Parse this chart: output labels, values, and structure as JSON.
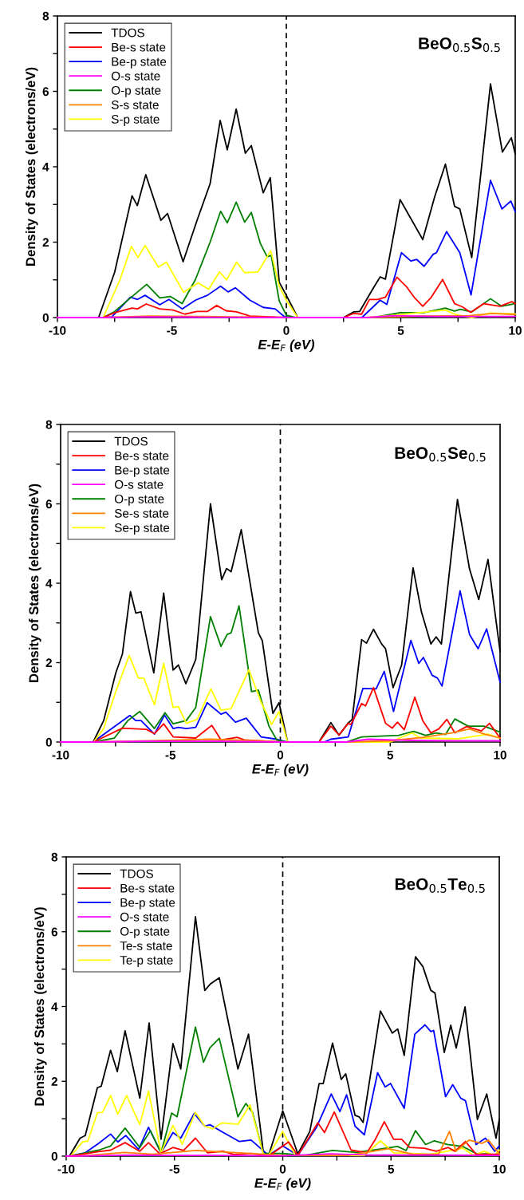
{
  "chart_data": [
    {
      "type": "line",
      "title": "BeO$_{0.5}$S$_{0.5}$",
      "xlabel": "E-E$_{F}$ (eV)",
      "ylabel": "Density of States (electrons/eV)",
      "xlim": [
        -10,
        10
      ],
      "ylim": [
        0,
        8
      ],
      "xticks": [
        -10,
        {
          "value": -7.5,
          "label": null
        },
        -5,
        {
          "value": -2.5,
          "label": null
        },
        0,
        {
          "value": 2.5,
          "label": null
        },
        5,
        {
          "value": 7.5,
          "label": null
        },
        10
      ],
      "yticks": [
        0,
        {
          "value": 1,
          "label": null
        },
        2,
        {
          "value": 3,
          "label": null
        },
        4,
        {
          "value": 5,
          "label": null
        },
        6,
        {
          "value": 7,
          "label": null
        },
        8
      ],
      "grid": false,
      "legend": "top left",
      "marker": "none",
      "line_style": "solid",
      "ref_lines": [
        {
          "axis": "x",
          "value": 0,
          "color": "#000000",
          "line_style": "dashed"
        }
      ],
      "series": [
        {
          "name": "TDOS",
          "color": "#000000",
          "x": [
            -10,
            -8.2,
            -7.5,
            -6.74,
            -6.51,
            -6.14,
            -5.48,
            -5.19,
            -4.51,
            -3.91,
            -3.33,
            -2.89,
            -2.58,
            -2.19,
            -1.79,
            -1.53,
            -1.01,
            -0.7,
            -0.31,
            0,
            0.5,
            2.5,
            2.94,
            3.2,
            3.75,
            4.1,
            4.33,
            4.97,
            5.96,
            6.48,
            6.95,
            7.35,
            7.58,
            8.1,
            8.92,
            9.44,
            9.83,
            10
          ],
          "values": [
            0,
            0,
            1.2,
            3.23,
            2.97,
            3.79,
            2.58,
            2.76,
            1.48,
            2.56,
            3.55,
            5.23,
            4.45,
            5.53,
            4.36,
            4.56,
            3.31,
            3.71,
            0.94,
            0.59,
            0,
            0,
            0.15,
            0.16,
            0.73,
            1.08,
            1.02,
            3.13,
            2.07,
            3.2,
            4.07,
            2.95,
            2.88,
            1.59,
            6.2,
            4.39,
            4.77,
            4.34
          ]
        },
        {
          "name": "Be-s state",
          "color": "#ff0000",
          "x": [
            -10,
            -8,
            -7.5,
            -6.74,
            -6.5,
            -6.12,
            -5.53,
            -4.95,
            -4.43,
            -3.91,
            -3.45,
            -3.04,
            -2.63,
            -2.17,
            -1.59,
            0,
            2.5,
            2.94,
            3.29,
            3.63,
            3.99,
            4.33,
            4.83,
            5.26,
            5.61,
            5.96,
            6.31,
            6.83,
            7.35,
            7.7,
            8.05,
            8.63,
            9.33,
            9.85,
            10
          ],
          "values": [
            0,
            0,
            0.13,
            0.25,
            0.23,
            0.36,
            0.23,
            0.2,
            0.09,
            0.16,
            0.16,
            0.32,
            0.18,
            0.15,
            0.04,
            0,
            0,
            0.11,
            0.09,
            0.48,
            0.48,
            0.54,
            1.07,
            0.81,
            0.52,
            0.3,
            0.52,
            1.01,
            0.37,
            0.28,
            0.14,
            0.37,
            0.3,
            0.42,
            0.37
          ]
        },
        {
          "name": "Be-p state",
          "color": "#0000ff",
          "x": [
            -10,
            -8,
            -7.62,
            -6.81,
            -6.5,
            -6.17,
            -5.53,
            -5.13,
            -4.55,
            -3.97,
            -3.45,
            -2.87,
            -2.54,
            -2.23,
            -1.59,
            -1.01,
            -0.49,
            -0.08,
            0.3,
            3.3,
            4.1,
            4.39,
            5.03,
            5.44,
            5.7,
            6.02,
            6.42,
            6.56,
            7.0,
            7.58,
            8.07,
            8.92,
            9.42,
            9.81,
            10
          ],
          "values": [
            0,
            0,
            0.02,
            0.54,
            0.48,
            0.59,
            0.34,
            0.48,
            0.23,
            0.46,
            0.59,
            0.83,
            0.68,
            0.79,
            0.46,
            0.27,
            0.23,
            0.02,
            0,
            0,
            0.46,
            0.35,
            1.72,
            1.5,
            1.54,
            1.36,
            1.68,
            1.72,
            2.28,
            1.72,
            0.6,
            3.64,
            2.88,
            3.09,
            2.81
          ]
        },
        {
          "name": "O-s state",
          "color": "#ff00ff",
          "x": [
            -10,
            -8,
            -6,
            -4,
            0,
            3.5,
            4.7,
            6.5,
            8,
            10
          ],
          "values": [
            0,
            0,
            0.02,
            0.01,
            0,
            0,
            0.05,
            0.03,
            0.03,
            0.03
          ]
        },
        {
          "name": "O-p state",
          "color": "#008000",
          "x": [
            -10,
            -8,
            -7.5,
            -6.81,
            -6.1,
            -5.53,
            -5.07,
            -4.55,
            -3.97,
            -3.33,
            -2.87,
            -2.58,
            -2.19,
            -1.82,
            -1.53,
            -1.13,
            -0.84,
            -0.66,
            -0.31,
            0,
            0.4,
            3.8,
            4.97,
            6,
            6.95,
            7.35,
            7.6,
            8.1,
            8.92,
            9.4,
            10
          ],
          "values": [
            0,
            0,
            0.16,
            0.52,
            0.88,
            0.52,
            0.56,
            0.37,
            1.01,
            2.0,
            2.82,
            2.51,
            3.06,
            2.53,
            2.79,
            1.96,
            1.61,
            1.65,
            0.44,
            0.06,
            0,
            0,
            0.13,
            0.13,
            0.25,
            0.17,
            0.22,
            0.15,
            0.5,
            0.3,
            0.37
          ]
        },
        {
          "name": "S-s state",
          "color": "#ff8000",
          "x": [
            -10,
            -8,
            -6,
            -4,
            0,
            3.5,
            6,
            8,
            9,
            10
          ],
          "values": [
            0,
            0,
            0.04,
            0.03,
            0,
            0,
            0.04,
            0.05,
            0.11,
            0.08
          ]
        },
        {
          "name": "S-p state",
          "color": "#ffff00",
          "x": [
            -10,
            -8,
            -7.27,
            -6.77,
            -6.48,
            -6.17,
            -5.59,
            -5.24,
            -4.49,
            -3.85,
            -3.39,
            -2.92,
            -2.61,
            -2.17,
            -1.82,
            -1.24,
            -0.68,
            -0.31,
            0,
            0.5,
            3.5,
            4.5,
            6.95,
            7.4,
            8.1,
            8.9,
            10
          ],
          "values": [
            0,
            0,
            1.0,
            1.89,
            1.59,
            1.91,
            1.34,
            1.47,
            0.67,
            0.92,
            0.75,
            1.21,
            1.0,
            1.47,
            1.19,
            1.21,
            1.77,
            0.83,
            0.46,
            0,
            0,
            0.05,
            0.2,
            0.08,
            0,
            0.12,
            0.1
          ]
        }
      ]
    },
    {
      "type": "line",
      "title": "BeO$_{0.5}$Se$_{0.5}$",
      "xlabel": "E-E$_{F}$ (eV)",
      "ylabel": "Density of States (electrons/eV)",
      "xlim": [
        -10,
        10
      ],
      "ylim": [
        0,
        8
      ],
      "xticks": [
        -10,
        {
          "value": -7.5,
          "label": null
        },
        -5,
        {
          "value": -2.5,
          "label": null
        },
        0,
        {
          "value": 2.5,
          "label": null
        },
        5,
        {
          "value": 7.5,
          "label": null
        },
        10
      ],
      "yticks": [
        0,
        {
          "value": 1,
          "label": null
        },
        2,
        {
          "value": 3,
          "label": null
        },
        4,
        {
          "value": 5,
          "label": null
        },
        6,
        {
          "value": 7,
          "label": null
        },
        8
      ],
      "grid": false,
      "legend": "top left",
      "marker": "none",
      "line_style": "solid",
      "ref_lines": [
        {
          "axis": "x",
          "value": 0,
          "color": "#000000",
          "line_style": "dashed"
        }
      ],
      "series": [
        {
          "name": "TDOS",
          "color": "#000000",
          "x": [
            -10,
            -8.52,
            -8.04,
            -7.49,
            -7.19,
            -6.82,
            -6.58,
            -6.34,
            -5.76,
            -5.31,
            -4.88,
            -4.64,
            -4.3,
            -3.85,
            -3.18,
            -2.67,
            -2.45,
            -2.24,
            -1.78,
            -1.0,
            -0.82,
            -0.34,
            -0.06,
            0.33,
            1.76,
            2.3,
            2.67,
            3.09,
            3.27,
            3.7,
            3.92,
            4.24,
            4.61,
            4.79,
            5.13,
            5.52,
            6.04,
            6.42,
            6.85,
            7.09,
            7.33,
            8.06,
            8.61,
            9.03,
            9.45,
            10
          ],
          "values": [
            0,
            0,
            0.54,
            1.74,
            2.21,
            3.79,
            3.25,
            3.28,
            1.74,
            3.75,
            1.81,
            1.94,
            1.47,
            2.08,
            6.0,
            4.09,
            4.37,
            4.29,
            5.35,
            2.75,
            2.55,
            0.72,
            0.99,
            0,
            0,
            0.49,
            0.17,
            0.48,
            0.57,
            2.58,
            2.49,
            2.84,
            2.47,
            2.35,
            1.37,
            1.94,
            4.39,
            3.28,
            2.47,
            2.65,
            2.47,
            6.11,
            4.36,
            3.59,
            4.6,
            2.28
          ]
        },
        {
          "name": "Be-s state",
          "color": "#ff0000",
          "x": [
            -10,
            -8.5,
            -7.19,
            -6.1,
            -5.73,
            -5.31,
            -4.88,
            -3.85,
            -3.12,
            -2.7,
            -1.97,
            -1.61,
            0,
            1.76,
            2.3,
            2.67,
            3.09,
            3.21,
            3.7,
            3.88,
            4.24,
            4.79,
            5.09,
            5.33,
            5.64,
            6.12,
            6.48,
            6.85,
            7.21,
            7.58,
            7.94,
            8.48,
            9.15,
            9.52,
            10
          ],
          "values": [
            0,
            0,
            0.35,
            0.32,
            0.21,
            0.46,
            0.13,
            0.1,
            0.42,
            0.05,
            0.12,
            0.05,
            0,
            0,
            0.4,
            0.18,
            0.47,
            0.44,
            0.97,
            0.91,
            1.37,
            0.47,
            0.35,
            0.5,
            0.31,
            1.13,
            0.54,
            0.23,
            0.33,
            0.57,
            0.23,
            0.39,
            0.28,
            0.47,
            0.1
          ]
        },
        {
          "name": "Be-p state",
          "color": "#0000ff",
          "x": [
            -10,
            -8.52,
            -6.85,
            -6.58,
            -6.34,
            -5.73,
            -5.27,
            -4.88,
            -4.64,
            -4.28,
            -3.85,
            -3.33,
            -2.7,
            -2.48,
            -2.04,
            -1.55,
            -0.88,
            -0.16,
            0.3,
            2,
            2.3,
            3.09,
            3.76,
            4.36,
            4.73,
            5.15,
            5.94,
            6.3,
            6.51,
            6.91,
            7.15,
            7.36,
            8.18,
            8.61,
            9.0,
            9.39,
            10
          ],
          "values": [
            0,
            0,
            0.67,
            0.54,
            0.54,
            0.2,
            0.68,
            0.34,
            0.37,
            0.34,
            0.37,
            0.99,
            0.7,
            0.75,
            0.5,
            0.6,
            0.13,
            0.07,
            0,
            0,
            0.07,
            0.13,
            1.35,
            1.34,
            1.78,
            0.77,
            2.56,
            1.98,
            2.13,
            1.68,
            1.61,
            1.41,
            3.81,
            2.71,
            2.35,
            2.85,
            1.51
          ]
        },
        {
          "name": "O-s state",
          "color": "#ff00ff",
          "x": [
            -10,
            -8.5,
            -6,
            -3,
            0,
            3,
            4,
            6,
            8,
            10
          ],
          "values": [
            0,
            0,
            0.02,
            0.02,
            0,
            0,
            0.07,
            0.04,
            0.03,
            0.03
          ]
        },
        {
          "name": "O-p state",
          "color": "#008000",
          "x": [
            -10,
            -8.5,
            -7.55,
            -6.94,
            -6.4,
            -5.73,
            -5.25,
            -4.88,
            -4.28,
            -3.85,
            -3.18,
            -2.7,
            -2.42,
            -2.24,
            -1.88,
            -1.31,
            -1.0,
            -0.52,
            -0.16,
            0.3,
            3,
            3.7,
            5.39,
            6.06,
            6.61,
            7.09,
            7.52,
            7.94,
            8.55,
            9.27,
            10
          ],
          "values": [
            0,
            0,
            0.1,
            0.54,
            0.77,
            0.34,
            0.74,
            0.46,
            0.54,
            0.87,
            3.16,
            2.41,
            2.71,
            2.75,
            3.43,
            1.27,
            1.31,
            0.4,
            0.05,
            0,
            0,
            0.13,
            0.17,
            0.27,
            0.17,
            0.23,
            0.19,
            0.58,
            0.4,
            0.4,
            0.25
          ]
        },
        {
          "name": "Se-s state",
          "color": "#ff8000",
          "x": [
            -10,
            -8.5,
            -6,
            -3.2,
            -1,
            0,
            3,
            5,
            6.5,
            7.8,
            8.6,
            9.3,
            10
          ],
          "values": [
            0,
            0,
            0.03,
            0.07,
            0.03,
            0,
            0,
            0.03,
            0.12,
            0.23,
            0.33,
            0.2,
            0.1
          ]
        },
        {
          "name": "Se-p state",
          "color": "#ffff00",
          "x": [
            -10,
            -8.5,
            -8.04,
            -7.49,
            -6.88,
            -6.46,
            -6.22,
            -5.73,
            -5.31,
            -4.88,
            -4.64,
            -4.28,
            -3.79,
            -3.16,
            -2.7,
            -2.24,
            -1.43,
            -0.88,
            -0.4,
            -0.06,
            0.33,
            5,
            6.0,
            6.36,
            8.06,
            9.45,
            10
          ],
          "values": [
            0,
            0,
            0.34,
            1.27,
            2.18,
            1.61,
            1.61,
            0.94,
            1.98,
            0.87,
            0.89,
            0.47,
            0.57,
            1.34,
            0.8,
            0.84,
            1.82,
            1.01,
            0.44,
            0.77,
            0,
            0,
            0.23,
            0.1,
            0.08,
            0.2,
            0.1
          ]
        }
      ]
    },
    {
      "type": "line",
      "title": "BeO$_{0.5}$Te$_{0.5}$",
      "xlabel": "E-E$_{F}$ (eV)",
      "ylabel": "Density of States (electrons/eV)",
      "xlim": [
        -10,
        10
      ],
      "ylim": [
        0,
        8
      ],
      "xticks": [
        -10,
        {
          "value": -7.5,
          "label": null
        },
        -5,
        {
          "value": -2.5,
          "label": null
        },
        0,
        {
          "value": 2.5,
          "label": null
        },
        5,
        {
          "value": 7.5,
          "label": null
        },
        10
      ],
      "yticks": [
        0,
        {
          "value": 1,
          "label": null
        },
        2,
        {
          "value": 3,
          "label": null
        },
        4,
        {
          "value": 5,
          "label": null
        },
        6,
        {
          "value": 7,
          "label": null
        },
        8
      ],
      "grid": false,
      "legend": "top left",
      "marker": "none",
      "line_style": "solid",
      "ref_lines": [
        {
          "axis": "x",
          "value": 0,
          "color": "#000000",
          "line_style": "dashed"
        }
      ],
      "series": [
        {
          "name": "TDOS",
          "color": "#000000",
          "x": [
            -10,
            -9.85,
            -9.36,
            -9.12,
            -8.56,
            -8.38,
            -7.95,
            -7.64,
            -7.28,
            -6.6,
            -6.17,
            -5.62,
            -5.07,
            -4.71,
            -4.03,
            -3.6,
            -3.33,
            -2.93,
            -2.07,
            -1.58,
            -0.9,
            -0.65,
            0,
            0.7,
            1.25,
            1.68,
            1.87,
            2.3,
            2.7,
            2.91,
            3.34,
            3.53,
            3.71,
            4.51,
            5.06,
            5.31,
            5.61,
            6.13,
            6.47,
            6.84,
            7.03,
            7.46,
            7.76,
            8.01,
            8.42,
            8.99,
            9.42,
            9.85,
            10
          ],
          "values": [
            0,
            0,
            0.48,
            0.55,
            1.83,
            1.87,
            2.83,
            2.26,
            3.35,
            1.55,
            3.56,
            0.45,
            3.01,
            2.33,
            6.4,
            4.43,
            4.61,
            4.77,
            2.33,
            3.26,
            0.13,
            0.02,
            1.21,
            0.06,
            0.66,
            1.94,
            1.94,
            3.02,
            2.05,
            2.2,
            1.09,
            1.05,
            0.9,
            3.88,
            3.29,
            3.4,
            2.69,
            5.33,
            5.07,
            4.43,
            4.36,
            2.77,
            3.5,
            2.89,
            3.99,
            0.98,
            1.66,
            0.48,
            0.98
          ]
        },
        {
          "name": "Be-s state",
          "color": "#ff0000",
          "x": [
            -10,
            -9.8,
            -8.5,
            -7.95,
            -7.28,
            -6.6,
            -6.2,
            -5.68,
            -5.07,
            -4.58,
            -4.03,
            -3.48,
            -2.76,
            -2.25,
            -1.46,
            -0.65,
            0.27,
            0.7,
            1.31,
            1.62,
            1.93,
            2.38,
            3.16,
            3.89,
            4.26,
            4.69,
            5.12,
            5.49,
            5.86,
            6.54,
            7.09,
            7.64,
            7.95,
            8.44,
            8.93,
            10
          ],
          "values": [
            0,
            0,
            0.12,
            0.16,
            0.36,
            0.13,
            0.36,
            0.06,
            0.23,
            0.15,
            0.48,
            0.09,
            0.13,
            0.04,
            0.07,
            0,
            0.38,
            0.02,
            0.59,
            0.89,
            0.63,
            1.18,
            0.16,
            0.09,
            0.43,
            0.92,
            0.45,
            0.45,
            0.23,
            0.21,
            0.13,
            0.23,
            0.13,
            0.39,
            0.05,
            0.05
          ]
        },
        {
          "name": "Be-p state",
          "color": "#0000ff",
          "x": [
            -10,
            -9.85,
            -9.12,
            -8.5,
            -7.95,
            -7.62,
            -7.25,
            -6.66,
            -6.2,
            -5.62,
            -5.07,
            -4.71,
            -4.09,
            -3.6,
            -3.36,
            -2.74,
            -2.0,
            -1.46,
            -0.65,
            0,
            0.7,
            1.56,
            2.24,
            2.64,
            2.95,
            3.34,
            3.77,
            4.38,
            4.73,
            4.98,
            5.61,
            6.1,
            6.57,
            6.84,
            6.97,
            7.52,
            7.85,
            8.22,
            8.44,
            8.93,
            9.36,
            9.79,
            10
          ],
          "values": [
            0,
            0,
            0.09,
            0.34,
            0.59,
            0.38,
            0.55,
            0.18,
            0.77,
            0.09,
            0.63,
            0.48,
            1.14,
            0.8,
            0.84,
            0.63,
            0.39,
            0.43,
            0.02,
            0.27,
            0.02,
            0.77,
            1.66,
            1.19,
            1.64,
            0.8,
            0.57,
            2.23,
            1.85,
            1.94,
            1.28,
            3.26,
            3.51,
            3.33,
            3.36,
            1.59,
            1.91,
            1.55,
            1.48,
            0.31,
            0.48,
            0.13,
            0.27
          ]
        },
        {
          "name": "O-s state",
          "color": "#ff00ff",
          "x": [
            -10,
            -9,
            -7,
            -5,
            -3,
            0,
            2.2,
            4,
            7,
            10
          ],
          "values": [
            0,
            0.01,
            0.03,
            0.02,
            0.02,
            0.01,
            0.06,
            0.03,
            0.03,
            0.02
          ]
        },
        {
          "name": "O-p state",
          "color": "#008000",
          "x": [
            -10,
            -9.8,
            -8.5,
            -7.95,
            -7.28,
            -6.6,
            -6.11,
            -5.62,
            -5.13,
            -4.88,
            -4.03,
            -3.66,
            -3.36,
            -2.93,
            -2.07,
            -1.7,
            -1.39,
            -0.9,
            0,
            1,
            2.3,
            3.4,
            4.5,
            5.3,
            5.7,
            6.13,
            6.6,
            7.0,
            7.6,
            8.3,
            9.0,
            9.4,
            10
          ],
          "values": [
            0,
            0,
            0.16,
            0.27,
            0.75,
            0.23,
            0.68,
            0.09,
            1.15,
            1.05,
            3.45,
            2.51,
            2.9,
            3.15,
            1.05,
            1.41,
            1.16,
            0.07,
            0.07,
            0.02,
            0.15,
            0.1,
            0.19,
            0.26,
            0.15,
            0.68,
            0.31,
            0.41,
            0.31,
            0.26,
            0.05,
            0.06,
            0.02
          ]
        },
        {
          "name": "Te-s state",
          "color": "#ff8000",
          "x": [
            -10,
            -9,
            -7.3,
            -6,
            -4,
            -1.5,
            0,
            3,
            4.9,
            6,
            7.2,
            7.7,
            8.0,
            8.6,
            9.2,
            9.5,
            10
          ],
          "values": [
            0,
            0.02,
            0.1,
            0.05,
            0.15,
            0.07,
            0.02,
            0.02,
            0.2,
            0.05,
            0.05,
            0.66,
            0.13,
            0.43,
            0.34,
            0.43,
            0.06
          ]
        },
        {
          "name": "Te-p state",
          "color": "#ffff00",
          "x": [
            -10,
            -9.8,
            -9.24,
            -9.0,
            -8.56,
            -8.32,
            -7.95,
            -7.62,
            -7.21,
            -6.6,
            -6.2,
            -5.62,
            -5.07,
            -4.64,
            -4.03,
            -3.6,
            -3.24,
            -2.8,
            -2.07,
            -1.51,
            -0.9,
            -0.65,
            0,
            0.58,
            3.77,
            4.51,
            5.12,
            6.84,
            8.32,
            8.81,
            9.3,
            9.79,
            10
          ],
          "values": [
            0,
            0,
            0.38,
            0.4,
            1.16,
            1.17,
            1.62,
            1.12,
            1.62,
            0.84,
            1.74,
            0.09,
            0.82,
            0.32,
            1.17,
            0.8,
            0.73,
            0.89,
            0.85,
            1.37,
            0.06,
            0.02,
            0.66,
            0.02,
            0.02,
            0.41,
            0.09,
            0.05,
            0.21,
            0.02,
            0.13,
            0.02,
            0.16
          ]
        }
      ]
    }
  ]
}
